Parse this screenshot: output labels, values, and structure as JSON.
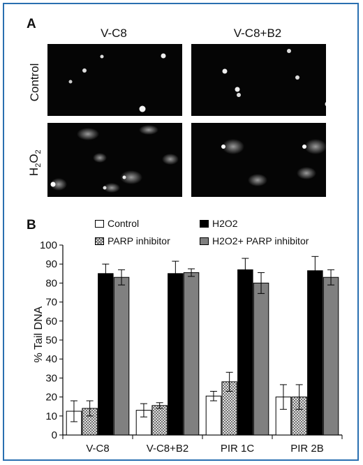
{
  "panel_a": {
    "letter": "A",
    "columns": [
      "V-C8",
      "V-C8+B2"
    ],
    "rows": {
      "control": "Control",
      "h2o2_main": "H",
      "h2o2_sub1": "2",
      "h2o2_mid": "O",
      "h2o2_sub2": "2"
    }
  },
  "panel_b": {
    "letter": "B"
  },
  "chart_data": {
    "type": "bar",
    "ylabel": "% Tail DNA",
    "ylim": [
      0,
      100
    ],
    "yticks": [
      0,
      10,
      20,
      30,
      40,
      50,
      60,
      70,
      80,
      90,
      100
    ],
    "categories": [
      "V-C8",
      "V-C8+B2",
      "PIR 1C",
      "PIR 2B"
    ],
    "legend": [
      "Control",
      "H2O2",
      "PARP inhibitor",
      "H2O2+ PARP inhibitor"
    ],
    "series": [
      {
        "name": "Control",
        "fill": "#ffffff",
        "values": [
          12.5,
          13,
          20.5,
          20
        ],
        "errors": [
          5.5,
          3.5,
          2.5,
          6.5
        ]
      },
      {
        "name": "PARP inhibitor",
        "fill": "hatch",
        "values": [
          14,
          15.5,
          28,
          20
        ],
        "errors": [
          4,
          1.5,
          5,
          6.5
        ]
      },
      {
        "name": "H2O2",
        "fill": "#000000",
        "values": [
          85,
          85,
          87,
          86.5
        ],
        "errors": [
          5,
          6.5,
          6,
          7.5
        ]
      },
      {
        "name": "H2O2+ PARP inhibitor",
        "fill": "#808080",
        "values": [
          83,
          85.5,
          80,
          83
        ],
        "errors": [
          4,
          2,
          5.5,
          4
        ]
      }
    ]
  }
}
